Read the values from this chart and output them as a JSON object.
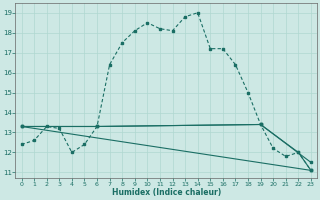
{
  "xlabel": "Humidex (Indice chaleur)",
  "bg_color": "#cde8e4",
  "line_color": "#1a6e64",
  "grid_color": "#b0d8d0",
  "xlim": [
    -0.5,
    23.5
  ],
  "ylim": [
    10.7,
    19.5
  ],
  "yticks": [
    11,
    12,
    13,
    14,
    15,
    16,
    17,
    18,
    19
  ],
  "xticks": [
    0,
    1,
    2,
    3,
    4,
    5,
    6,
    7,
    8,
    9,
    10,
    11,
    12,
    13,
    14,
    15,
    16,
    17,
    18,
    19,
    20,
    21,
    22,
    23
  ],
  "line1_x": [
    0,
    1,
    2,
    3,
    4,
    5,
    6,
    7,
    8,
    9,
    10,
    11,
    12,
    13,
    14,
    15,
    16,
    17,
    18,
    19,
    20,
    21,
    22,
    23
  ],
  "line1_y": [
    12.4,
    12.6,
    13.3,
    13.2,
    12.0,
    12.4,
    13.3,
    16.4,
    17.5,
    18.1,
    18.5,
    18.2,
    18.1,
    18.8,
    19.0,
    17.2,
    17.2,
    16.4,
    15.0,
    13.4,
    12.2,
    11.8,
    12.0,
    11.1
  ],
  "line2_x": [
    0,
    6,
    19,
    23
  ],
  "line2_y": [
    13.3,
    13.3,
    13.4,
    11.5
  ],
  "line3_x": [
    0,
    6,
    19,
    22,
    23
  ],
  "line3_y": [
    13.3,
    13.3,
    13.4,
    12.0,
    11.1
  ],
  "line4_x": [
    0,
    23
  ],
  "line4_y": [
    13.3,
    11.1
  ]
}
